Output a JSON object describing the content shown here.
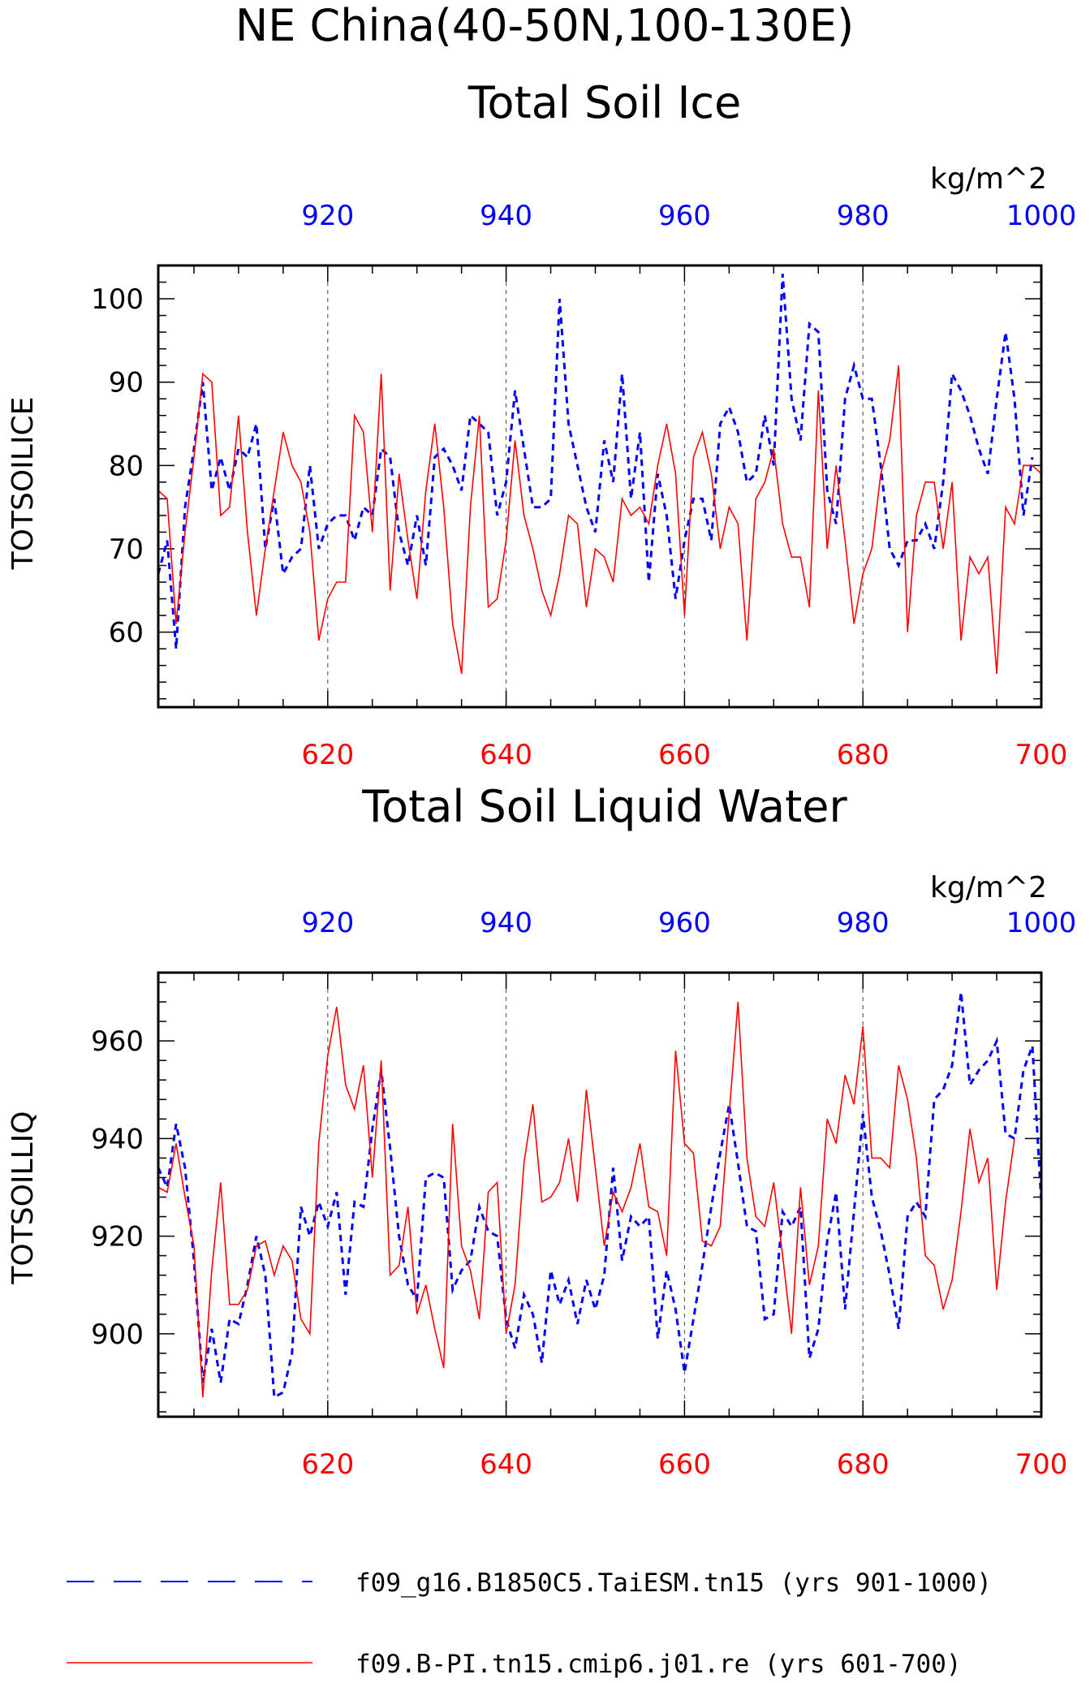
{
  "title_line1": "NE China(40-50N,100-130E)",
  "legend": [
    {
      "label": "f09_g16.B1850C5.TaiESM.tn15 (yrs 901-1000)",
      "color": "#0000ff",
      "style": "dashed"
    },
    {
      "label": "f09.B-PI.tn15.cmip6.j01.re (yrs 601-700)",
      "color": "#ff0000",
      "style": "solid"
    }
  ],
  "chart_data": [
    {
      "type": "line",
      "title": "Total Soil Ice",
      "ylabel": "TOTSOILICE",
      "units": "kg/m^2",
      "ylim": [
        51,
        104
      ],
      "yticks": [
        "60",
        "70",
        "80",
        "90",
        "100"
      ],
      "x_bottom": {
        "lim": [
          601,
          700
        ],
        "ticks": [
          "620",
          "640",
          "660",
          "680",
          "700"
        ],
        "color": "#ff0000"
      },
      "x_top": {
        "lim": [
          901,
          1000
        ],
        "ticks": [
          "920",
          "940",
          "960",
          "980",
          "1000"
        ],
        "color": "#0000ff"
      },
      "grid": "vertical-dashed",
      "series": [
        {
          "values": [
            67,
            71,
            58,
            75,
            82,
            90,
            77,
            81,
            77,
            82,
            81,
            85,
            70,
            76,
            67,
            69,
            70,
            80,
            70,
            73,
            74,
            74,
            71,
            75,
            74,
            82,
            81,
            72,
            68,
            74,
            68,
            81,
            82,
            80,
            77,
            86,
            85,
            84,
            74,
            78,
            89,
            82,
            75,
            75,
            76,
            100,
            85,
            80,
            75,
            72,
            83,
            78,
            91,
            76,
            84,
            66,
            79,
            74,
            64,
            71,
            76,
            76,
            71,
            85,
            87,
            84,
            78,
            79,
            86,
            80,
            103,
            88,
            83,
            97,
            96,
            77,
            73,
            88,
            92,
            88,
            88,
            80,
            70,
            68,
            71,
            71,
            73,
            70,
            78,
            91,
            89,
            86,
            82,
            79,
            88,
            96,
            88,
            74,
            81
          ]
        },
        {
          "values": [
            77,
            76,
            61,
            72,
            81,
            91,
            90,
            74,
            75,
            86,
            72,
            62,
            70,
            77,
            84,
            80,
            78,
            72,
            59,
            64,
            66,
            66,
            86,
            84,
            72,
            91,
            65,
            79,
            71,
            64,
            77,
            85,
            75,
            61,
            55,
            75,
            86,
            63,
            64,
            71,
            83,
            74,
            70,
            65,
            62,
            67,
            74,
            73,
            63,
            70,
            69,
            66,
            76,
            74,
            75,
            73,
            80,
            85,
            79,
            62,
            81,
            84,
            79,
            70,
            75,
            73,
            59,
            76,
            78,
            82,
            73,
            69,
            69,
            63,
            89,
            70,
            80,
            71,
            61,
            67,
            70,
            79,
            83,
            92,
            60,
            74,
            78,
            78,
            70,
            78,
            59,
            69,
            67,
            69,
            55,
            75,
            73,
            80,
            80,
            79
          ]
        }
      ]
    },
    {
      "type": "line",
      "title": "Total Soil Liquid Water",
      "ylabel": "TOTSOILLIQ",
      "units": "kg/m^2",
      "ylim": [
        883,
        974
      ],
      "yticks": [
        "900",
        "920",
        "940",
        "960"
      ],
      "x_bottom": {
        "lim": [
          601,
          700
        ],
        "ticks": [
          "620",
          "640",
          "660",
          "680",
          "700"
        ],
        "color": "#ff0000"
      },
      "x_top": {
        "lim": [
          901,
          1000
        ],
        "ticks": [
          "920",
          "940",
          "960",
          "980",
          "1000"
        ],
        "color": "#0000ff"
      },
      "grid": "vertical-dashed",
      "series": [
        {
          "values": [
            934,
            930,
            943,
            934,
            915,
            890,
            901,
            890,
            903,
            902,
            910,
            920,
            912,
            887,
            888,
            896,
            926,
            920,
            927,
            922,
            929,
            908,
            927,
            926,
            942,
            954,
            938,
            920,
            910,
            907,
            932,
            933,
            932,
            909,
            913,
            915,
            926,
            921,
            920,
            903,
            897,
            908,
            904,
            894,
            913,
            906,
            911,
            902,
            911,
            905,
            912,
            934,
            915,
            924,
            922,
            924,
            899,
            913,
            905,
            892,
            903,
            914,
            926,
            937,
            947,
            935,
            922,
            921,
            903,
            904,
            925,
            922,
            926,
            895,
            901,
            919,
            929,
            905,
            925,
            945,
            928,
            921,
            912,
            901,
            924,
            927,
            924,
            948,
            950,
            955,
            970,
            951,
            954,
            956,
            960,
            941,
            940,
            954,
            959,
            927
          ]
        },
        {
          "values": [
            930,
            929,
            939,
            928,
            918,
            887,
            913,
            931,
            906,
            906,
            909,
            918,
            919,
            912,
            918,
            915,
            903,
            900,
            939,
            957,
            967,
            951,
            946,
            955,
            932,
            956,
            912,
            914,
            926,
            904,
            910,
            901,
            893,
            943,
            918,
            913,
            903,
            929,
            931,
            900,
            910,
            935,
            947,
            927,
            928,
            931,
            940,
            927,
            950,
            934,
            918,
            929,
            925,
            930,
            939,
            926,
            925,
            916,
            958,
            939,
            937,
            919,
            918,
            922,
            945,
            968,
            936,
            924,
            922,
            931,
            916,
            900,
            930,
            910,
            918,
            944,
            939,
            953,
            947,
            963,
            936,
            936,
            934,
            955,
            948,
            936,
            916,
            914,
            905,
            911,
            925,
            942,
            931,
            936,
            909,
            927,
            940
          ]
        }
      ]
    }
  ]
}
